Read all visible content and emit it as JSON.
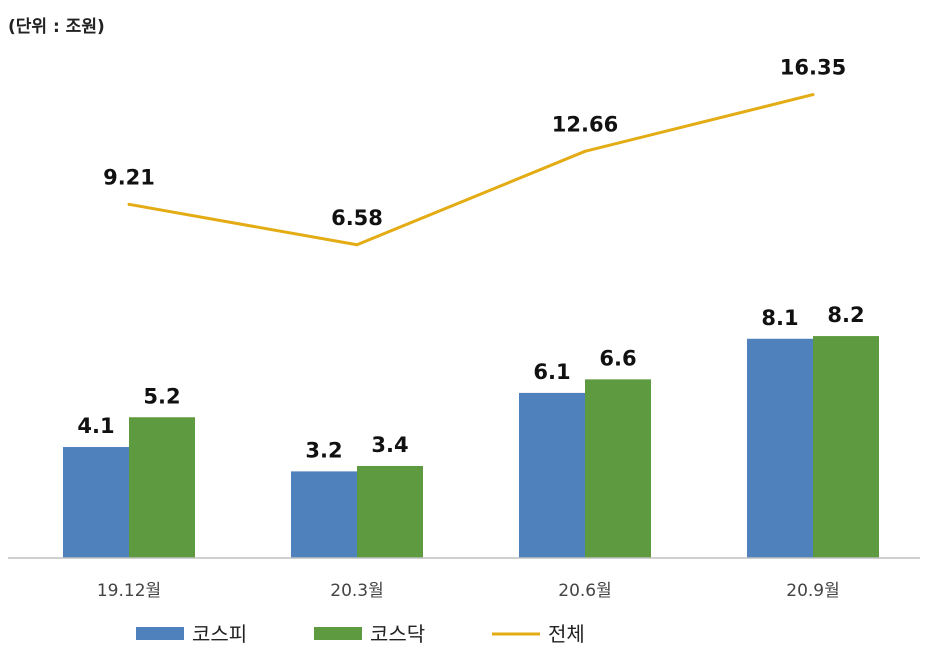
{
  "unit_label": "(단위 : 조원)",
  "colors": {
    "kospi": "#4f81bd",
    "kosdaq": "#5e9a3f",
    "total": "#e3ac14",
    "axis": "#bfbfbf"
  },
  "chart_data": {
    "type": "bar",
    "categories": [
      "19.12월",
      "20.3월",
      "20.6월",
      "20.9월"
    ],
    "series": [
      {
        "name": "코스피",
        "type": "bar",
        "values": [
          4.1,
          3.2,
          6.1,
          8.1
        ],
        "labels": [
          "4.1",
          "3.2",
          "6.1",
          "8.1"
        ]
      },
      {
        "name": "코스닥",
        "type": "bar",
        "values": [
          5.2,
          3.4,
          6.6,
          8.2
        ],
        "labels": [
          "5.2",
          "3.4",
          "6.6",
          "8.2"
        ]
      },
      {
        "name": "전체",
        "type": "line",
        "values": [
          9.21,
          6.58,
          12.66,
          16.35
        ],
        "labels": [
          "9.21",
          "6.58",
          "12.66",
          "16.35"
        ]
      }
    ],
    "bar_axis_range": [
      0,
      18.4
    ],
    "line_axis_range": [
      -13.8,
      18.6
    ],
    "grid": false,
    "legend_position": "bottom"
  }
}
